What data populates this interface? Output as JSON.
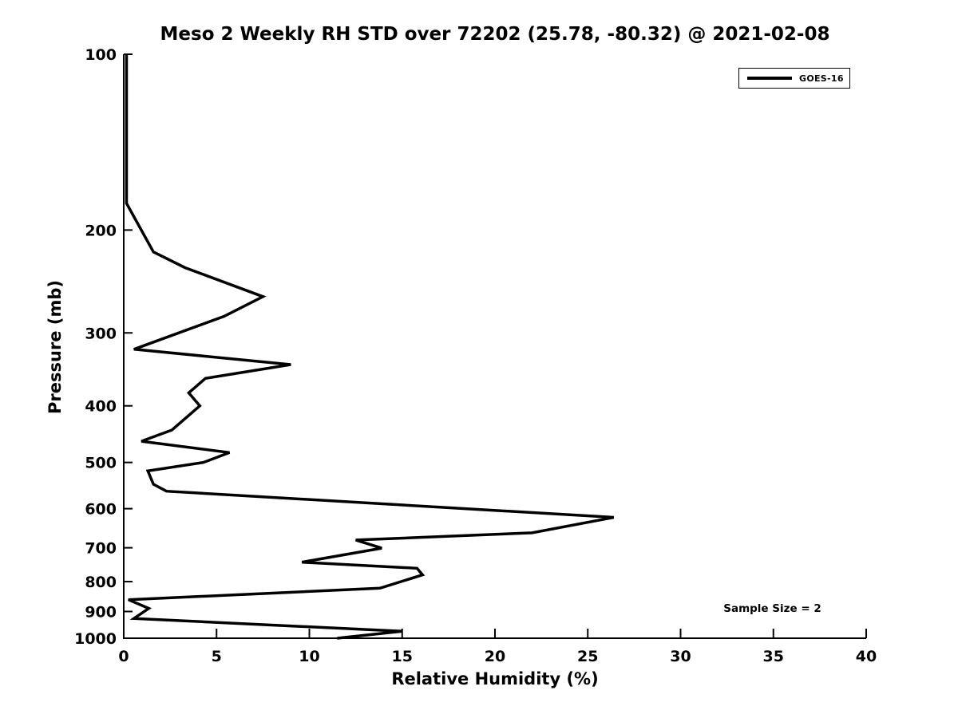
{
  "chart_data": {
    "type": "line",
    "title": "Meso 2 Weekly RH STD over 72202 (25.78, -80.32) @ 2021-02-08",
    "xlabel": "Relative Humidity (%)",
    "ylabel": "Pressure (mb)",
    "xlim": [
      0,
      40
    ],
    "ylim": [
      100,
      1000
    ],
    "yscale": "log",
    "y_inverted": true,
    "grid": false,
    "x_ticks": [
      0,
      5,
      10,
      15,
      20,
      25,
      30,
      35,
      40
    ],
    "y_ticks": [
      100,
      200,
      300,
      400,
      500,
      600,
      700,
      800,
      900,
      1000
    ],
    "axis_color": "#000000",
    "line_width": 3.5,
    "legend": {
      "position": "upper-right",
      "entries": [
        {
          "label": "GOES-16",
          "color": "#000000"
        }
      ]
    },
    "series": [
      {
        "name": "GOES-16",
        "color": "#000000",
        "pressure_mb": [
          100,
          180,
          218,
          232,
          260,
          281,
          320,
          340,
          359,
          380,
          400,
          440,
          460,
          481,
          500,
          517,
          545,
          560,
          621,
          660,
          679,
          701,
          741,
          759,
          779,
          821,
          859,
          889,
          925,
          973,
          1000
        ],
        "rh_std_percent": [
          0.15,
          0.15,
          1.6,
          3.3,
          7.5,
          5.4,
          0.55,
          9.0,
          4.4,
          3.5,
          4.1,
          2.6,
          0.95,
          5.7,
          4.3,
          1.3,
          1.6,
          2.3,
          26.4,
          22.0,
          12.5,
          13.9,
          9.6,
          15.8,
          16.1,
          13.8,
          0.25,
          1.35,
          0.55,
          15.0,
          11.5
        ]
      }
    ],
    "annotations": [
      {
        "text": "Sample Size = 2"
      }
    ]
  }
}
